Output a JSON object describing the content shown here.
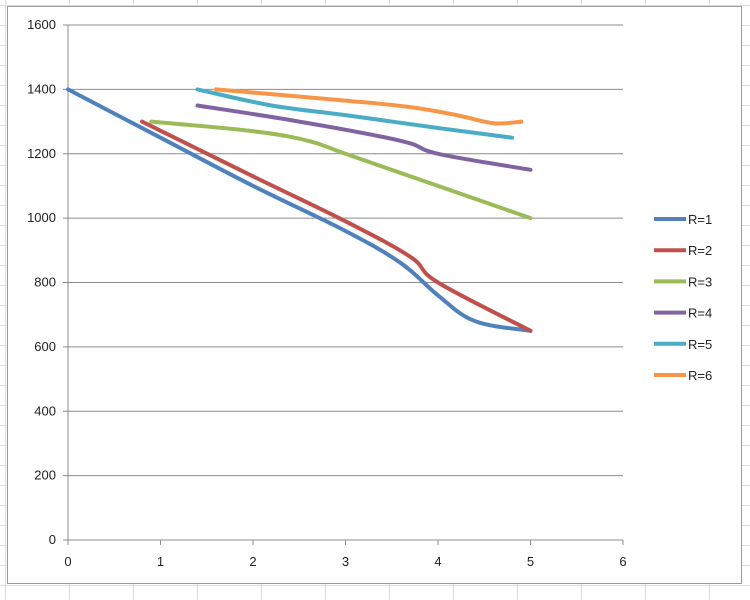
{
  "chart_data": {
    "type": "line",
    "title": "",
    "xlabel": "",
    "ylabel": "",
    "xlim": [
      0,
      6
    ],
    "ylim": [
      0,
      1600
    ],
    "x_ticks": [
      "0",
      "1",
      "2",
      "3",
      "4",
      "5",
      "6"
    ],
    "y_ticks": [
      "0",
      "200",
      "400",
      "600",
      "800",
      "1000",
      "1200",
      "1400",
      "1600"
    ],
    "grid": "horizontal",
    "legend_position": "right",
    "series": [
      {
        "name": "R=1",
        "color": "#4f81bd",
        "points": [
          [
            0,
            1400
          ],
          [
            1,
            1250
          ],
          [
            2,
            1100
          ],
          [
            3,
            960
          ],
          [
            3.6,
            860
          ],
          [
            4,
            760
          ],
          [
            4.4,
            680
          ],
          [
            5,
            650
          ]
        ]
      },
      {
        "name": "R=2",
        "color": "#c0504d",
        "points": [
          [
            0.8,
            1300
          ],
          [
            2,
            1130
          ],
          [
            3,
            990
          ],
          [
            3.7,
            880
          ],
          [
            4,
            800
          ],
          [
            5,
            650
          ]
        ]
      },
      {
        "name": "R=3",
        "color": "#9bbb59",
        "points": [
          [
            0.9,
            1300
          ],
          [
            2,
            1270
          ],
          [
            2.6,
            1240
          ],
          [
            3,
            1200
          ],
          [
            4,
            1100
          ],
          [
            5,
            1000
          ]
        ]
      },
      {
        "name": "R=4",
        "color": "#8064a2",
        "points": [
          [
            1.4,
            1350
          ],
          [
            2.5,
            1300
          ],
          [
            3.6,
            1240
          ],
          [
            4,
            1200
          ],
          [
            5,
            1150
          ]
        ]
      },
      {
        "name": "R=5",
        "color": "#4bacc6",
        "points": [
          [
            1.4,
            1400
          ],
          [
            2.2,
            1350
          ],
          [
            3,
            1320
          ],
          [
            4,
            1280
          ],
          [
            4.8,
            1250
          ]
        ]
      },
      {
        "name": "R=6",
        "color": "#f79646",
        "points": [
          [
            1.6,
            1400
          ],
          [
            3,
            1365
          ],
          [
            3.7,
            1345
          ],
          [
            4.2,
            1320
          ],
          [
            4.6,
            1295
          ],
          [
            4.9,
            1300
          ]
        ]
      }
    ]
  }
}
